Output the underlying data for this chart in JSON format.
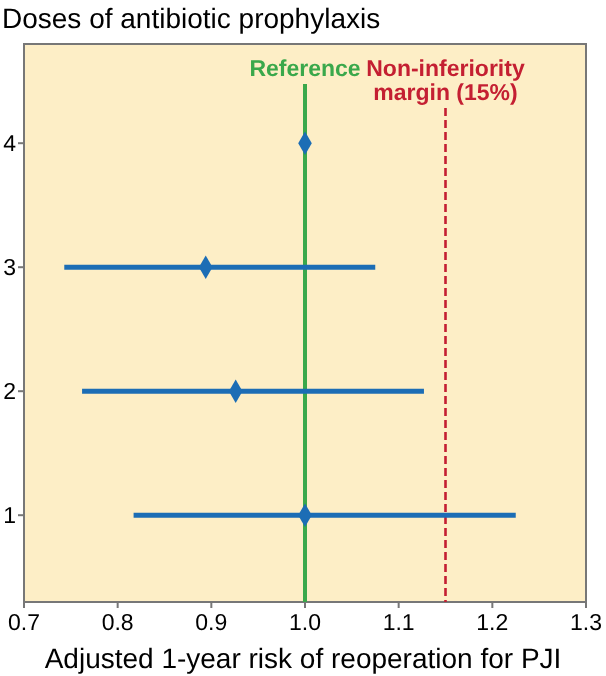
{
  "chart_data": {
    "type": "scatter",
    "ylabel": "Doses of antibiotic prophylaxis",
    "xlabel": "Adjusted 1-year risk of reoperation for PJI",
    "series": [
      {
        "color": "#1c6db5",
        "x": [
          1.0,
          0.894,
          0.926,
          1.0
        ],
        "values": [
          4,
          3,
          2,
          1
        ],
        "xerrors": [
          null,
          [
            0.743,
            1.075
          ],
          [
            0.762,
            1.127
          ],
          [
            0.817,
            1.225
          ]
        ]
      }
    ],
    "marker": "diamond",
    "xlim": [
      0.7,
      1.3
    ],
    "xticks": [
      0.7,
      0.8,
      0.9,
      {
        "value": 1,
        "label": "1.0"
      },
      1.1,
      1.2,
      1.3
    ],
    "ylim": [
      0.3,
      4.8
    ],
    "yticks": [
      1,
      2,
      3,
      4
    ],
    "ref_lines": [
      {
        "axis": "x",
        "value": 1,
        "label": "Reference",
        "color": "#3aa84b",
        "line_style": "solid"
      },
      {
        "axis": "x",
        "value": 1.15,
        "label": "Non-inferiority margin (15%)",
        "color": "#c41f32",
        "line_style": "dashed"
      }
    ],
    "grid": false
  }
}
